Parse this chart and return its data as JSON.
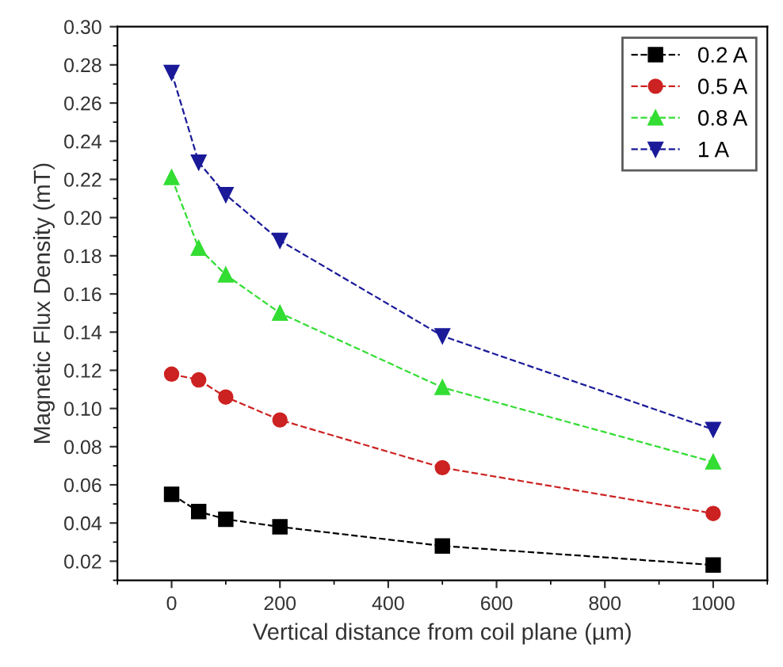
{
  "chart_data": {
    "type": "line",
    "xlabel": "Vertical distance from coil plane (µm)",
    "ylabel": "Magnetic Flux Density (mT)",
    "x": [
      0,
      50,
      100,
      200,
      500,
      1000
    ],
    "series": [
      {
        "name": "0.2 A",
        "color": "#000000",
        "marker": "square",
        "line_style": "dashed",
        "values": [
          0.055,
          0.046,
          0.042,
          0.038,
          0.028,
          0.018
        ]
      },
      {
        "name": "0.5 A",
        "color": "#cc2222",
        "marker": "circle",
        "line_style": "dashed",
        "values": [
          0.118,
          0.115,
          0.106,
          0.094,
          0.069,
          0.045
        ]
      },
      {
        "name": "0.8 A",
        "color": "#33dd33",
        "marker": "triangle",
        "line_style": "dashed",
        "values": [
          0.221,
          0.184,
          0.17,
          0.15,
          0.111,
          0.072
        ]
      },
      {
        "name": "1 A",
        "color": "#1a1a99",
        "marker": "triangle_down",
        "line_style": "dashed",
        "values": [
          0.276,
          0.229,
          0.212,
          0.188,
          0.138,
          0.089
        ]
      }
    ],
    "xlim": [
      -100,
      1100
    ],
    "xticks": [
      0,
      200,
      400,
      600,
      800,
      1000
    ],
    "ylim": [
      0.01,
      0.3
    ],
    "yticks": [
      {
        "value": 0.02,
        "label": "0.02"
      },
      {
        "value": 0.04,
        "label": "0.04"
      },
      {
        "value": 0.06,
        "label": "0.06"
      },
      {
        "value": 0.08,
        "label": "0.08"
      },
      {
        "value": 0.1,
        "label": "0.10"
      },
      {
        "value": 0.12,
        "label": "0.12"
      },
      {
        "value": 0.14,
        "label": "0.14"
      },
      {
        "value": 0.16,
        "label": "0.16"
      },
      {
        "value": 0.18,
        "label": "0.18"
      },
      {
        "value": 0.2,
        "label": "0.20"
      },
      {
        "value": 0.22,
        "label": "0.22"
      },
      {
        "value": 0.24,
        "label": "0.24"
      },
      {
        "value": 0.26,
        "label": "0.26"
      },
      {
        "value": 0.28,
        "label": "0.28"
      },
      {
        "value": 0.3,
        "label": "0.30"
      }
    ],
    "grid": false,
    "legend": "top right"
  }
}
